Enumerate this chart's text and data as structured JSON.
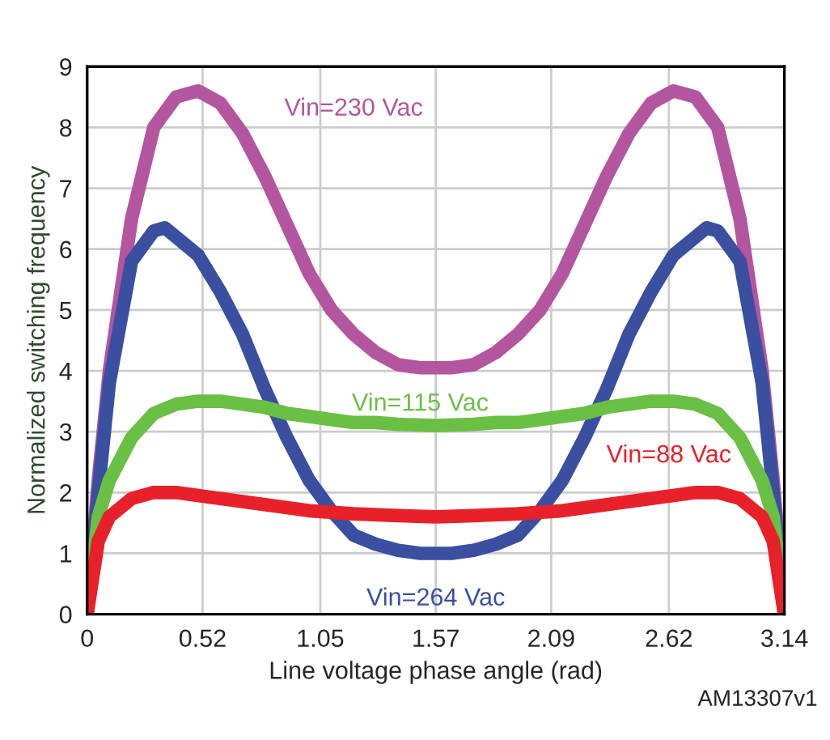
{
  "chart_data": {
    "type": "line",
    "xlabel": "Line voltage phase angle (rad)",
    "ylabel": "Normalized switching frequency",
    "xlim": [
      0,
      3.14
    ],
    "ylim": [
      0,
      9
    ],
    "xticks": [
      0,
      0.52,
      1.05,
      1.57,
      2.09,
      2.62,
      3.14
    ],
    "yticks": [
      0,
      1,
      2,
      3,
      4,
      5,
      6,
      7,
      8,
      9
    ],
    "grid": true,
    "legend": false,
    "annotations": [
      "AM13307v1"
    ],
    "series": [
      {
        "name": "Vin=230 Vac",
        "color": "#b455a0",
        "x": [
          0,
          0.05,
          0.1,
          0.2,
          0.3,
          0.4,
          0.5,
          0.6,
          0.7,
          0.8,
          0.9,
          1.0,
          1.1,
          1.2,
          1.3,
          1.4,
          1.5,
          1.57,
          1.64,
          1.74,
          1.84,
          1.94,
          2.04,
          2.14,
          2.24,
          2.34,
          2.44,
          2.54,
          2.64,
          2.74,
          2.84,
          2.94,
          3.04,
          3.09,
          3.14
        ],
        "values": [
          0,
          2.2,
          4.0,
          6.5,
          8.0,
          8.5,
          8.6,
          8.4,
          7.9,
          7.2,
          6.4,
          5.6,
          5.0,
          4.6,
          4.3,
          4.1,
          4.05,
          4.05,
          4.05,
          4.1,
          4.3,
          4.6,
          5.0,
          5.6,
          6.4,
          7.2,
          7.9,
          8.4,
          8.6,
          8.5,
          8.0,
          6.5,
          4.0,
          2.2,
          0
        ]
      },
      {
        "name": "Vin=264 Vac",
        "color": "#3a4fa0",
        "x": [
          0,
          0.05,
          0.1,
          0.2,
          0.3,
          0.35,
          0.4,
          0.5,
          0.6,
          0.7,
          0.8,
          0.9,
          1.0,
          1.1,
          1.2,
          1.3,
          1.4,
          1.5,
          1.57,
          1.64,
          1.74,
          1.84,
          1.94,
          2.04,
          2.14,
          2.24,
          2.34,
          2.44,
          2.54,
          2.64,
          2.74,
          2.79,
          2.84,
          2.94,
          3.04,
          3.09,
          3.14
        ],
        "values": [
          0,
          2.0,
          3.8,
          5.8,
          6.3,
          6.35,
          6.2,
          5.9,
          5.3,
          4.6,
          3.7,
          2.9,
          2.2,
          1.7,
          1.3,
          1.15,
          1.05,
          1.0,
          1.0,
          1.0,
          1.05,
          1.15,
          1.3,
          1.7,
          2.2,
          2.9,
          3.7,
          4.6,
          5.3,
          5.9,
          6.2,
          6.35,
          6.3,
          5.8,
          3.8,
          2.0,
          0
        ]
      },
      {
        "name": "Vin=115 Vac",
        "color": "#6abf45",
        "x": [
          0,
          0.05,
          0.1,
          0.2,
          0.3,
          0.4,
          0.5,
          0.6,
          0.7,
          0.8,
          0.9,
          1.0,
          1.1,
          1.2,
          1.3,
          1.4,
          1.57,
          1.74,
          1.84,
          1.94,
          2.04,
          2.14,
          2.24,
          2.34,
          2.44,
          2.54,
          2.64,
          2.74,
          2.84,
          2.94,
          3.04,
          3.09,
          3.14
        ],
        "values": [
          0,
          1.6,
          2.2,
          2.9,
          3.3,
          3.45,
          3.5,
          3.5,
          3.45,
          3.4,
          3.3,
          3.25,
          3.2,
          3.15,
          3.15,
          3.12,
          3.1,
          3.12,
          3.15,
          3.15,
          3.2,
          3.25,
          3.3,
          3.4,
          3.45,
          3.5,
          3.5,
          3.45,
          3.3,
          2.9,
          2.2,
          1.6,
          0
        ]
      },
      {
        "name": "Vin=88 Vac",
        "color": "#e8202a",
        "x": [
          0,
          0.05,
          0.1,
          0.2,
          0.3,
          0.4,
          0.5,
          0.6,
          0.7,
          0.8,
          0.9,
          1.0,
          1.2,
          1.4,
          1.57,
          1.74,
          1.94,
          2.14,
          2.24,
          2.34,
          2.44,
          2.54,
          2.64,
          2.74,
          2.84,
          2.94,
          3.04,
          3.09,
          3.14
        ],
        "values": [
          0,
          1.2,
          1.6,
          1.9,
          2.0,
          2.0,
          1.95,
          1.9,
          1.85,
          1.8,
          1.75,
          1.7,
          1.65,
          1.62,
          1.6,
          1.62,
          1.65,
          1.7,
          1.75,
          1.8,
          1.85,
          1.9,
          1.95,
          2.0,
          2.0,
          1.9,
          1.6,
          1.2,
          0
        ]
      }
    ]
  }
}
